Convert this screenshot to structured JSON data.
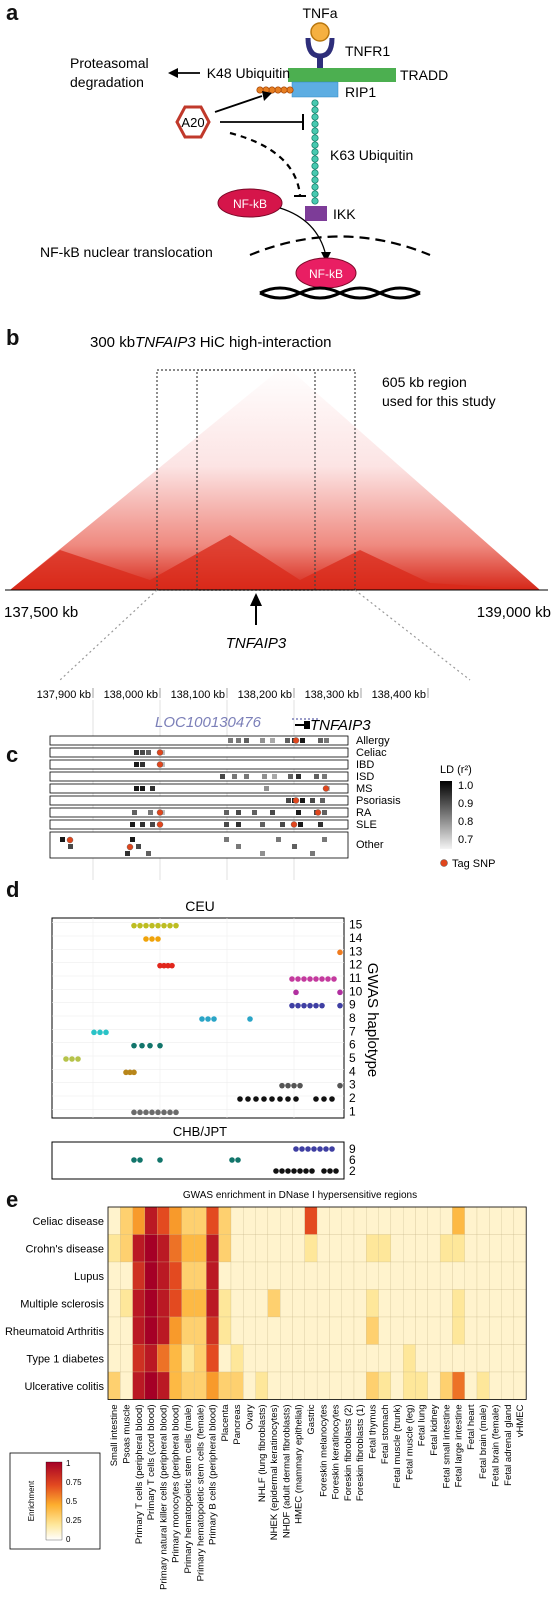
{
  "panels": {
    "a": "a",
    "b": "b",
    "c": "c",
    "d": "d",
    "e": "e"
  },
  "a": {
    "tnfa": "TNFa",
    "tnfr1": "TNFR1",
    "tradd": "TRADD",
    "rip1": "RIP1",
    "k48": "K48 Ubiquitin",
    "proteasomal": "Proteasomal",
    "degradation": "degradation",
    "a20": "A20",
    "k63": "K63 Ubiquitin",
    "nfkb": "NF-kB",
    "ikk": "IKK",
    "translocation": "NF-kB nuclear translocation"
  },
  "b": {
    "title_prefix": "300 kb",
    "title_gene": "TNFAIP3",
    "title_suffix": " HiC high-interaction",
    "region_line1": "605 kb region",
    "region_line2": "used for this study",
    "left_coord": "137,500 kb",
    "right_coord": "139,000 kb",
    "gene": "TNFAIP3"
  },
  "c": {
    "ticks": [
      "137,900 kb",
      "138,000 kb",
      "138,100 kb",
      "138,200 kb",
      "138,300 kb",
      "138,400 kb"
    ],
    "gene_loc": "LOC100130476",
    "gene_tnf": "TNFAIP3",
    "tracks": [
      "Allergy",
      "Celiac",
      "IBD",
      "ISD",
      "MS",
      "Psoriasis",
      "RA",
      "SLE",
      "Other"
    ],
    "legend_title": "LD (r²)",
    "legend_ticks": [
      "1.0",
      "0.9",
      "0.8",
      "0.7"
    ],
    "tag_snp": "Tag SNP"
  },
  "d": {
    "ceu": "CEU",
    "chb": "CHB/JPT",
    "axis_label": "GWAS haplotype",
    "ceu_ticks": [
      "15",
      "14",
      "13",
      "12",
      "11",
      "10",
      "9",
      "8",
      "7",
      "6",
      "5",
      "4",
      "3",
      "2",
      "1"
    ],
    "chb_ticks": [
      "9",
      "6",
      "2"
    ]
  },
  "e": {
    "title": "GWAS enrichment in DNase I hypersensitive regions",
    "legend_label": "Enrichment",
    "legend_ticks": [
      "1",
      "0.75",
      "0.5",
      "0.25",
      "0"
    ]
  },
  "chart_data": {
    "type": "heatmap",
    "title": "GWAS enrichment in DNase I hypersensitive regions",
    "rows": [
      "Celiac disease",
      "Crohn's disease",
      "Lupus",
      "Multiple sclerosis",
      "Rheumatoid Arthritis",
      "Type 1 diabetes",
      "Ulcerative colitis"
    ],
    "columns": [
      "Small intestine",
      "Psoas muscle",
      "Primary T cells (peripheral blood)",
      "Primary T cells (cord blood)",
      "Primary natural killer cells (peripheral blood)",
      "Primary monocytes (peripheral blood)",
      "Primary hematopoietic stem cells (male)",
      "Primary hematopoietic stem cells (female)",
      "Primary B cells (peripheral blood)",
      "Placenta",
      "Pancreas",
      "Ovary",
      "NHLF (lung fibroblasts)",
      "NHEK (epidermal keratinocytes)",
      "NHDF (adult dermal fibroblasts)",
      "HMEC (mammary epithelial)",
      "Gastric",
      "Foreskin melanocytes",
      "Foreskin keratinocytes",
      "Foreskin fibroblasts (2)",
      "Foreskin fibroblasts (1)",
      "Fetal thymus",
      "Fetal stomach",
      "Fetal muscle (trunk)",
      "Fetal muscle (leg)",
      "Fetal lung",
      "Fetal kidney",
      "Fetal small intestine",
      "Fetal large intestine",
      "Fetal heart",
      "Fetal brain (male)",
      "Fetal brain (female)",
      "Fetal adrenal gland",
      "vHMEC"
    ],
    "values": [
      [
        0.1,
        0.3,
        0.5,
        0.9,
        0.7,
        0.5,
        0.3,
        0.3,
        0.7,
        0.3,
        0.1,
        0.1,
        0.1,
        0.1,
        0.1,
        0.1,
        0.7,
        0.1,
        0.1,
        0.1,
        0.1,
        0.1,
        0.1,
        0.1,
        0.1,
        0.1,
        0.1,
        0.1,
        0.4,
        0.1,
        0.1,
        0.1,
        0.1,
        0.1
      ],
      [
        0.2,
        0.3,
        0.9,
        1.0,
        0.9,
        0.6,
        0.4,
        0.4,
        0.9,
        0.3,
        0.1,
        0.1,
        0.1,
        0.1,
        0.1,
        0.1,
        0.2,
        0.1,
        0.1,
        0.1,
        0.1,
        0.2,
        0.2,
        0.1,
        0.1,
        0.1,
        0.1,
        0.2,
        0.2,
        0.1,
        0.1,
        0.1,
        0.1,
        0.1
      ],
      [
        0.1,
        0.1,
        0.8,
        1.0,
        0.9,
        0.7,
        0.3,
        0.3,
        0.9,
        0.1,
        0.1,
        0.1,
        0.1,
        0.1,
        0.1,
        0.1,
        0.1,
        0.1,
        0.1,
        0.1,
        0.1,
        0.1,
        0.1,
        0.1,
        0.1,
        0.1,
        0.1,
        0.1,
        0.1,
        0.1,
        0.1,
        0.1,
        0.1,
        0.1
      ],
      [
        0.1,
        0.2,
        0.9,
        1.0,
        0.9,
        0.7,
        0.4,
        0.4,
        0.9,
        0.2,
        0.1,
        0.1,
        0.1,
        0.3,
        0.1,
        0.1,
        0.1,
        0.1,
        0.1,
        0.1,
        0.1,
        0.2,
        0.1,
        0.1,
        0.1,
        0.1,
        0.1,
        0.1,
        0.2,
        0.1,
        0.1,
        0.1,
        0.1,
        0.1
      ],
      [
        0.1,
        0.1,
        0.9,
        1.0,
        0.9,
        0.5,
        0.3,
        0.3,
        0.8,
        0.2,
        0.1,
        0.1,
        0.1,
        0.1,
        0.1,
        0.1,
        0.1,
        0.1,
        0.1,
        0.1,
        0.1,
        0.3,
        0.1,
        0.1,
        0.1,
        0.1,
        0.1,
        0.1,
        0.2,
        0.1,
        0.1,
        0.1,
        0.1,
        0.1
      ],
      [
        0.1,
        0.1,
        0.8,
        0.9,
        0.6,
        0.4,
        0.2,
        0.3,
        0.7,
        0.1,
        0.2,
        0.1,
        0.1,
        0.1,
        0.1,
        0.1,
        0.1,
        0.1,
        0.1,
        0.1,
        0.1,
        0.1,
        0.1,
        0.1,
        0.2,
        0.1,
        0.1,
        0.1,
        0.1,
        0.1,
        0.1,
        0.1,
        0.1,
        0.1
      ],
      [
        0.3,
        0.1,
        0.9,
        1.0,
        0.9,
        0.4,
        0.3,
        0.3,
        0.5,
        0.3,
        0.3,
        0.1,
        0.2,
        0.1,
        0.1,
        0.1,
        0.1,
        0.1,
        0.1,
        0.1,
        0.1,
        0.3,
        0.2,
        0.1,
        0.2,
        0.2,
        0.1,
        0.3,
        0.6,
        0.1,
        0.2,
        0.1,
        0.1,
        0.1
      ]
    ],
    "color_range": [
      0,
      1
    ]
  }
}
